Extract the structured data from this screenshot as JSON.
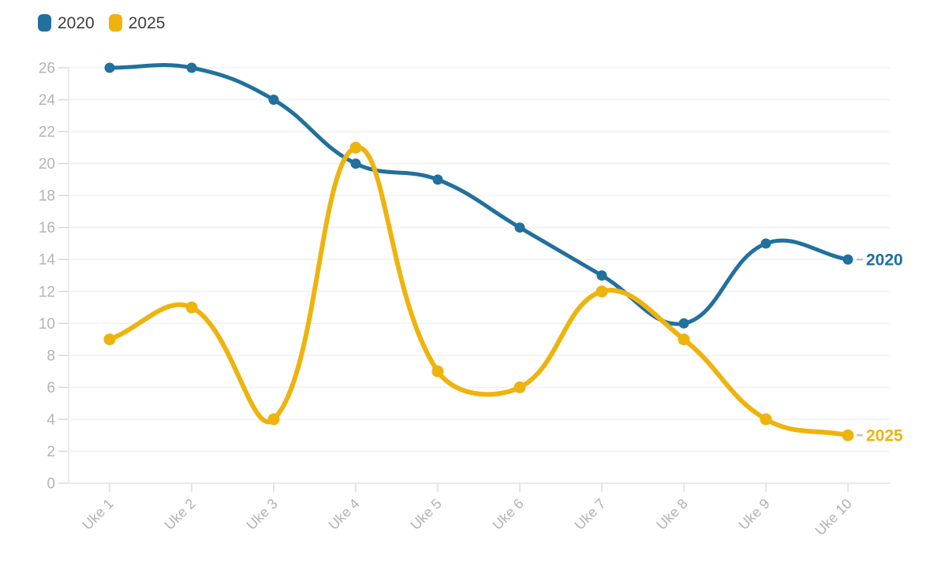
{
  "chart_data": {
    "type": "line",
    "title": "",
    "categories": [
      "Uke 1",
      "Uke 2",
      "Uke 3",
      "Uke 4",
      "Uke 5",
      "Uke 6",
      "Uke 7",
      "Uke 8",
      "Uke 9",
      "Uke 10"
    ],
    "series": [
      {
        "name": "2020",
        "color": "#21709d",
        "values": [
          26,
          26,
          24,
          20,
          19,
          16,
          13,
          10,
          15,
          14
        ]
      },
      {
        "name": "2025",
        "color": "#efb30e",
        "values": [
          9,
          11,
          4,
          21,
          7,
          6,
          12,
          9,
          4,
          3
        ]
      }
    ],
    "xlabel": "",
    "ylabel": "",
    "ylim": [
      0,
      26
    ],
    "ytick_step": 2,
    "yticks": [
      0,
      2,
      4,
      6,
      8,
      10,
      12,
      14,
      16,
      18,
      20,
      22,
      24,
      26
    ],
    "grid": "horizontal",
    "smoothing": "cardinal",
    "legend_position": "top-left",
    "end_labels": true,
    "colors": {
      "grid_line": "#f0f0f0",
      "axis_line": "#e4e4e4",
      "tick_mark": "#dadada",
      "axis_text": "#b3b3b3",
      "legend_text": "#3d3d3d",
      "end_label_connector": "#c4c4c4"
    }
  }
}
